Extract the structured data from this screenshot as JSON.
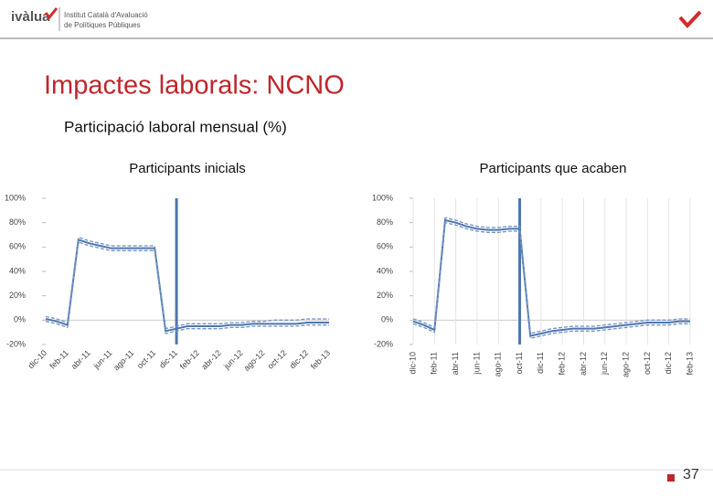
{
  "header": {
    "logo": "ivàlua",
    "institute": [
      "Institut Català d'Avaluació",
      "de Polítiques Públiques"
    ]
  },
  "title": "Impactes laborals: NCNO",
  "subtitle": "Participació laboral mensual (%)",
  "page_number": 37,
  "chart_data": [
    {
      "type": "line",
      "title": "Participants inicials",
      "categories": [
        "dic-10",
        null,
        "feb-11",
        null,
        "abr-11",
        null,
        "jun-11",
        null,
        "ago-11",
        null,
        "oct-11",
        null,
        "dic-11",
        null,
        "feb-12",
        null,
        "abr-12",
        null,
        "jun-12",
        null,
        "ago-12",
        null,
        "oct-12",
        null,
        "dic-12",
        null,
        "feb-13"
      ],
      "series": [
        {
          "color": "#4f76ad",
          "dash": false,
          "values": [
            1,
            -1,
            -4,
            66,
            63,
            61,
            59,
            59,
            59,
            59,
            59,
            -9,
            -7,
            -5,
            -5,
            -5,
            -5,
            -4,
            -4,
            -3,
            -3,
            -3,
            -3,
            -3,
            -2,
            -2,
            -2
          ]
        },
        {
          "color": "#6f93c4",
          "dash": true,
          "values": [
            3,
            1,
            -2,
            68,
            65,
            63,
            61,
            61,
            61,
            61,
            61,
            -7,
            -5,
            -3,
            -3,
            -3,
            -3,
            -2,
            -2,
            -1,
            -1,
            0,
            0,
            0,
            1,
            1,
            1
          ]
        },
        {
          "color": "#6f93c4",
          "dash": true,
          "values": [
            -1,
            -3,
            -6,
            64,
            61,
            59,
            57,
            57,
            57,
            57,
            57,
            -11,
            -9,
            -7,
            -7,
            -7,
            -7,
            -6,
            -6,
            -5,
            -5,
            -5,
            -5,
            -5,
            -4,
            -4,
            -4
          ]
        }
      ],
      "vline": "dic-11",
      "grid_x": false,
      "ylim": [
        -20,
        100
      ],
      "yticks": [
        {
          "value": -20,
          "label": "-20%"
        },
        {
          "value": 0,
          "label": "0%"
        },
        {
          "value": 20,
          "label": "20%"
        },
        {
          "value": 40,
          "label": "40%"
        },
        {
          "value": 60,
          "label": "60%"
        },
        {
          "value": 80,
          "label": "80%"
        },
        {
          "value": 100,
          "label": "100%"
        }
      ]
    },
    {
      "type": "line",
      "title": "Participants que acaben",
      "categories": [
        "dic-10",
        null,
        "feb-11",
        null,
        "abr-11",
        null,
        "jun-11",
        null,
        "ago-11",
        null,
        "oct-11",
        null,
        "dic-11",
        null,
        "feb-12",
        null,
        "abr-12",
        null,
        "jun-12",
        null,
        "ago-12",
        null,
        "oct-12",
        null,
        "dic-12",
        null,
        "feb-13"
      ],
      "series": [
        {
          "color": "#4f76ad",
          "dash": false,
          "values": [
            -1,
            -4,
            -8,
            82,
            80,
            77,
            75,
            74,
            74,
            75,
            75,
            -13,
            -11,
            -9,
            -8,
            -7,
            -7,
            -7,
            -6,
            -5,
            -4,
            -3,
            -2,
            -2,
            -2,
            -1,
            -1
          ]
        },
        {
          "color": "#6f93c4",
          "dash": true,
          "values": [
            1,
            -2,
            -6,
            84,
            82,
            79,
            77,
            76,
            76,
            77,
            77,
            -11,
            -9,
            -7,
            -6,
            -5,
            -5,
            -5,
            -4,
            -3,
            -2,
            -1,
            0,
            0,
            0,
            1,
            1
          ]
        },
        {
          "color": "#6f93c4",
          "dash": true,
          "values": [
            -3,
            -6,
            -10,
            80,
            78,
            75,
            73,
            72,
            72,
            73,
            73,
            -15,
            -13,
            -11,
            -10,
            -9,
            -9,
            -9,
            -8,
            -7,
            -6,
            -5,
            -4,
            -4,
            -4,
            -3,
            -3
          ]
        }
      ],
      "vline": "oct-11",
      "grid_x": true,
      "ylim": [
        -20,
        100
      ],
      "yticks": [
        {
          "value": -20,
          "label": "-20%"
        },
        {
          "value": 0,
          "label": "0%"
        },
        {
          "value": 20,
          "label": "20%"
        },
        {
          "value": 40,
          "label": "40%"
        },
        {
          "value": 60,
          "label": "60%"
        },
        {
          "value": 80,
          "label": "80%"
        },
        {
          "value": 100,
          "label": "100%"
        }
      ]
    }
  ]
}
